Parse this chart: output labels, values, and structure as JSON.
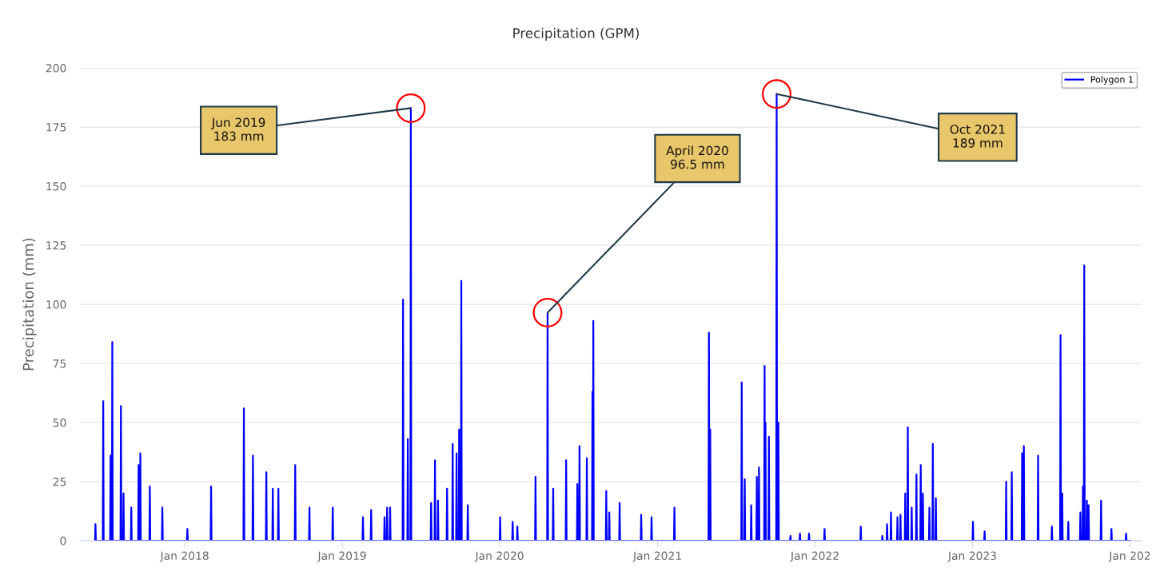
{
  "chart_data": {
    "type": "line",
    "title": "Precipitation (GPM)",
    "ylabel": "Precipitation (mm)",
    "xlim": [
      "2017-05-03",
      "2024-01-28"
    ],
    "xticks": [
      {
        "value": "2018-01-01",
        "label": "Jan 2018"
      },
      {
        "value": "2019-01-01",
        "label": "Jan 2019"
      },
      {
        "value": "2020-01-01",
        "label": "Jan 2020"
      },
      {
        "value": "2021-01-01",
        "label": "Jan 2021"
      },
      {
        "value": "2022-01-01",
        "label": "Jan 2022"
      },
      {
        "value": "2023-01-01",
        "label": "Jan 2023"
      },
      {
        "value": "2024-01-01",
        "label": "Jan 202"
      }
    ],
    "ylim": [
      0,
      200
    ],
    "yticks": [
      0,
      25,
      50,
      75,
      100,
      125,
      150,
      175,
      200
    ],
    "grid": "y",
    "legend": "top right",
    "line_style": "solid",
    "annotations": [
      {
        "text": "Jun 2019\n183 mm",
        "x": "2019-06-09",
        "y": 183
      },
      {
        "text": "April 2020\n96.5 mm",
        "x": "2020-04-21",
        "y": 96.5
      },
      {
        "text": "Oct 2021\n189 mm",
        "x": "2021-10-04",
        "y": 189
      }
    ],
    "series": [
      {
        "name": "Polygon 1",
        "color": "#0000ff",
        "x": [
          "2017-06-07",
          "2017-06-08",
          "2017-06-09",
          "2017-06-25",
          "2017-06-26",
          "2017-06-27",
          "2017-07-12",
          "2017-07-13",
          "2017-07-14",
          "2017-07-16",
          "2017-07-17",
          "2017-07-18",
          "2017-08-05",
          "2017-08-06",
          "2017-08-07",
          "2017-08-11",
          "2017-08-12",
          "2017-08-13",
          "2017-08-29",
          "2017-08-30",
          "2017-08-31",
          "2017-09-15",
          "2017-09-16",
          "2017-09-17",
          "2017-09-19",
          "2017-09-20",
          "2017-09-21",
          "2017-10-11",
          "2017-10-12",
          "2017-10-13",
          "2017-11-09",
          "2017-11-10",
          "2017-11-11",
          "2018-01-06",
          "2018-01-07",
          "2018-01-08",
          "2018-03-02",
          "2018-03-03",
          "2018-03-04",
          "2018-05-17",
          "2018-05-18",
          "2018-05-19",
          "2018-06-07",
          "2018-06-08",
          "2018-06-09",
          "2018-07-08",
          "2018-07-09",
          "2018-07-10",
          "2018-07-23",
          "2018-07-24",
          "2018-07-25",
          "2018-08-05",
          "2018-08-06",
          "2018-08-07",
          "2018-09-13",
          "2018-09-14",
          "2018-09-15",
          "2018-10-16",
          "2018-10-17",
          "2018-10-18",
          "2018-12-09",
          "2018-12-10",
          "2018-12-11",
          "2019-02-17",
          "2019-02-18",
          "2019-02-19",
          "2019-03-08",
          "2019-03-09",
          "2019-03-10",
          "2019-04-08",
          "2019-04-09",
          "2019-04-10",
          "2019-04-14",
          "2019-04-15",
          "2019-04-16",
          "2019-04-21",
          "2019-04-22",
          "2019-04-23",
          "2019-05-21",
          "2019-05-22",
          "2019-05-23",
          "2019-06-01",
          "2019-06-02",
          "2019-06-03",
          "2019-06-08",
          "2019-06-09",
          "2019-06-10",
          "2019-07-25",
          "2019-07-26",
          "2019-07-27",
          "2019-08-03",
          "2019-08-04",
          "2019-08-05",
          "2019-08-10",
          "2019-08-11",
          "2019-08-12",
          "2019-08-31",
          "2019-09-01",
          "2019-09-02",
          "2019-09-13",
          "2019-09-14",
          "2019-09-15",
          "2019-09-22",
          "2019-09-23",
          "2019-09-24",
          "2019-09-28",
          "2019-09-29",
          "2019-09-30",
          "2019-10-03",
          "2019-10-04",
          "2019-10-05",
          "2019-10-18",
          "2019-10-19",
          "2019-10-20",
          "2020-01-01",
          "2020-01-02",
          "2020-01-03",
          "2020-01-30",
          "2020-01-31",
          "2020-02-01",
          "2020-02-10",
          "2020-02-11",
          "2020-02-12",
          "2020-03-23",
          "2020-03-24",
          "2020-03-25",
          "2020-04-20",
          "2020-04-21",
          "2020-04-22",
          "2020-05-03",
          "2020-05-04",
          "2020-05-05",
          "2020-06-02",
          "2020-06-03",
          "2020-06-04",
          "2020-06-28",
          "2020-06-29",
          "2020-06-30",
          "2020-07-03",
          "2020-07-04",
          "2020-07-05",
          "2020-07-20",
          "2020-07-21",
          "2020-07-22",
          "2020-08-02",
          "2020-08-03",
          "2020-08-04",
          "2020-08-05",
          "2020-08-06",
          "2020-09-03",
          "2020-09-04",
          "2020-09-05",
          "2020-09-10",
          "2020-09-11",
          "2020-09-12",
          "2020-10-04",
          "2020-10-05",
          "2020-10-06",
          "2020-11-23",
          "2020-11-24",
          "2020-11-25",
          "2020-12-17",
          "2020-12-18",
          "2020-12-19",
          "2021-02-08",
          "2021-02-09",
          "2021-02-10",
          "2021-04-29",
          "2021-04-30",
          "2021-05-01",
          "2021-05-02",
          "2021-05-03",
          "2021-05-04",
          "2021-07-14",
          "2021-07-15",
          "2021-07-16",
          "2021-07-21",
          "2021-07-22",
          "2021-07-23",
          "2021-08-05",
          "2021-08-06",
          "2021-08-07",
          "2021-08-18",
          "2021-08-19",
          "2021-08-20",
          "2021-08-23",
          "2021-08-24",
          "2021-08-25",
          "2021-09-05",
          "2021-09-06",
          "2021-09-07",
          "2021-09-08",
          "2021-09-09",
          "2021-09-15",
          "2021-09-16",
          "2021-09-17",
          "2021-10-03",
          "2021-10-04",
          "2021-10-05",
          "2021-10-07",
          "2021-10-08",
          "2021-10-09",
          "2021-11-04",
          "2021-11-05",
          "2021-11-06",
          "2021-11-26",
          "2021-11-27",
          "2021-11-28",
          "2021-12-17",
          "2021-12-18",
          "2021-12-19",
          "2022-01-22",
          "2022-01-23",
          "2022-01-24",
          "2022-04-16",
          "2022-04-17",
          "2022-04-18",
          "2022-06-05",
          "2022-06-06",
          "2022-06-07",
          "2022-06-16",
          "2022-06-17",
          "2022-06-18",
          "2022-06-25",
          "2022-06-26",
          "2022-06-27",
          "2022-07-10",
          "2022-07-11",
          "2022-07-12",
          "2022-07-17",
          "2022-07-18",
          "2022-07-19",
          "2022-07-28",
          "2022-07-29",
          "2022-07-30",
          "2022-08-03",
          "2022-08-04",
          "2022-08-05",
          "2022-08-12",
          "2022-08-13",
          "2022-08-14",
          "2022-08-23",
          "2022-08-24",
          "2022-08-25",
          "2022-09-02",
          "2022-09-03",
          "2022-09-04",
          "2022-09-07",
          "2022-09-08",
          "2022-09-09",
          "2022-09-22",
          "2022-09-23",
          "2022-09-24",
          "2022-09-30",
          "2022-10-01",
          "2022-10-02",
          "2022-10-07",
          "2022-10-08",
          "2022-10-09",
          "2023-01-01",
          "2023-01-02",
          "2023-01-03",
          "2023-01-28",
          "2023-01-29",
          "2023-01-30",
          "2023-03-19",
          "2023-03-20",
          "2023-03-21",
          "2023-04-01",
          "2023-04-02",
          "2023-04-03",
          "2023-04-25",
          "2023-04-26",
          "2023-04-27",
          "2023-04-29",
          "2023-04-30",
          "2023-05-01",
          "2023-06-01",
          "2023-06-02",
          "2023-06-03",
          "2023-07-03",
          "2023-07-04",
          "2023-07-05",
          "2023-07-23",
          "2023-07-24",
          "2023-07-25",
          "2023-07-27",
          "2023-07-28",
          "2023-07-29",
          "2023-08-10",
          "2023-08-11",
          "2023-08-12",
          "2023-09-07",
          "2023-09-08",
          "2023-09-09",
          "2023-09-13",
          "2023-09-14",
          "2023-09-15",
          "2023-09-16",
          "2023-09-17",
          "2023-09-18",
          "2023-09-22",
          "2023-09-23",
          "2023-09-24",
          "2023-09-26",
          "2023-09-27",
          "2023-09-28",
          "2023-10-25",
          "2023-10-26",
          "2023-10-27",
          "2023-11-18",
          "2023-11-19",
          "2023-11-20",
          "2023-12-22",
          "2023-12-23",
          "2023-12-24",
          "2024-01-01"
        ],
        "values": [
          0,
          7,
          0,
          0,
          59,
          0,
          0,
          36,
          0,
          0,
          84,
          0,
          0,
          57,
          0,
          0,
          20,
          0,
          0,
          14,
          0,
          0,
          32,
          0,
          0,
          37,
          0,
          0,
          23,
          0,
          0,
          14,
          0,
          0,
          5,
          0,
          0,
          23,
          0,
          0,
          56,
          0,
          0,
          36,
          0,
          0,
          29,
          0,
          0,
          22,
          0,
          0,
          22,
          0,
          0,
          32,
          0,
          0,
          14,
          0,
          0,
          14,
          0,
          0,
          10,
          0,
          0,
          13,
          0,
          0,
          10,
          0,
          0,
          14,
          0,
          0,
          14,
          0,
          0,
          102,
          0,
          0,
          43,
          0,
          0,
          183,
          0,
          0,
          16,
          0,
          0,
          34,
          0,
          0,
          17,
          0,
          0,
          22,
          0,
          0,
          41,
          0,
          0,
          37,
          0,
          0,
          47,
          0,
          0,
          110,
          0,
          0,
          15,
          0,
          0,
          10,
          0,
          0,
          8,
          0,
          0,
          6,
          0,
          0,
          27,
          0,
          0,
          96.5,
          0,
          0,
          22,
          0,
          0,
          34,
          0,
          0,
          24,
          0,
          0,
          40,
          0,
          0,
          35,
          0,
          0,
          63,
          0,
          93,
          0,
          0,
          21,
          0,
          0,
          12,
          0,
          0,
          16,
          0,
          0,
          11,
          0,
          0,
          10,
          0,
          0,
          14,
          0,
          0,
          88,
          0,
          0,
          47,
          0,
          0,
          67,
          0,
          0,
          26,
          0,
          0,
          15,
          0,
          0,
          27,
          0,
          0,
          31,
          0,
          0,
          74,
          0,
          50,
          0,
          0,
          44,
          0,
          0,
          189,
          0,
          0,
          50,
          0,
          0,
          2,
          0,
          0,
          3,
          0,
          0,
          3,
          0,
          0,
          5,
          0,
          0,
          6,
          0,
          0,
          2,
          0,
          0,
          7,
          0,
          0,
          12,
          0,
          0,
          10,
          0,
          0,
          11,
          0,
          0,
          20,
          0,
          0,
          48,
          0,
          0,
          14,
          0,
          0,
          28,
          0,
          0,
          32,
          0,
          0,
          20,
          0,
          0,
          14,
          0,
          0,
          41,
          0,
          0,
          18,
          0,
          0,
          8,
          0,
          0,
          4,
          0,
          0,
          25,
          0,
          0,
          29,
          0,
          0,
          37,
          0,
          0,
          40,
          0,
          0,
          36,
          0,
          0,
          6,
          0,
          0,
          87,
          0,
          0,
          20,
          0,
          0,
          8,
          0,
          0,
          12,
          0,
          0,
          23,
          0,
          0,
          116.5,
          0,
          0,
          17,
          0,
          0,
          15,
          0,
          0,
          17,
          0,
          0,
          5,
          0,
          0,
          3,
          0,
          0
        ]
      }
    ]
  }
}
